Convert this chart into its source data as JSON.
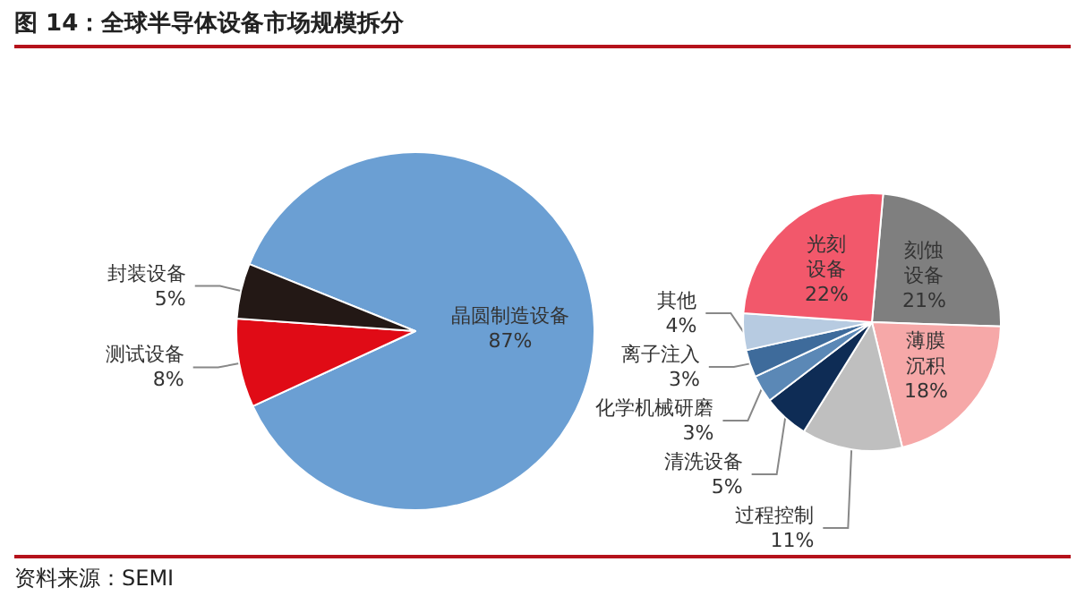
{
  "chart_data": [
    {
      "type": "pie",
      "title": "图 14：全球半导体设备市场规模拆分",
      "categories": [
        "晶圆制造设备",
        "测试设备",
        "封装设备"
      ],
      "values": [
        87,
        8,
        5
      ],
      "colors": [
        "#6b9fd3",
        "#e00b16",
        "#231815"
      ],
      "value_labels": [
        "87%",
        "8%",
        "5%"
      ],
      "annotations": [
        "资料来源：SEMI"
      ]
    },
    {
      "type": "pie",
      "categories": [
        "刻蚀设备",
        "薄膜沉积",
        "过程控制",
        "清洗设备",
        "化学机械研磨",
        "离子注入",
        "其他",
        "光刻设备"
      ],
      "values": [
        21,
        18,
        11,
        5,
        3,
        3,
        4,
        22
      ],
      "colors": [
        "#7f7f7f",
        "#f6a8a8",
        "#bfbfbf",
        "#0e2c55",
        "#5b88b6",
        "#3e6b9b",
        "#b7cbe1",
        "#f2586b"
      ],
      "value_labels": [
        "21%",
        "18%",
        "11%",
        "5%",
        "3%",
        "3%",
        "4%",
        "22%"
      ]
    }
  ]
}
